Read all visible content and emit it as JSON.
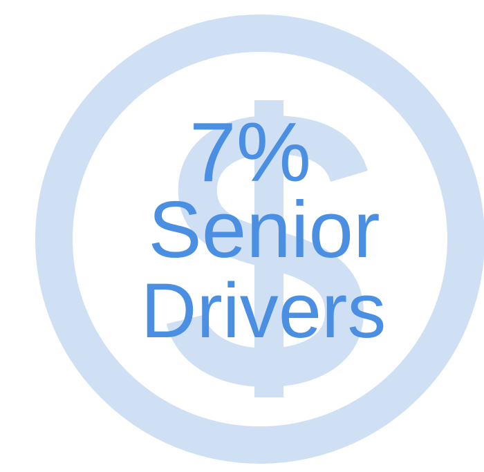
{
  "headline": {
    "stat": "7%",
    "lines": [
      "Senior",
      "Drivers"
    ]
  }
}
